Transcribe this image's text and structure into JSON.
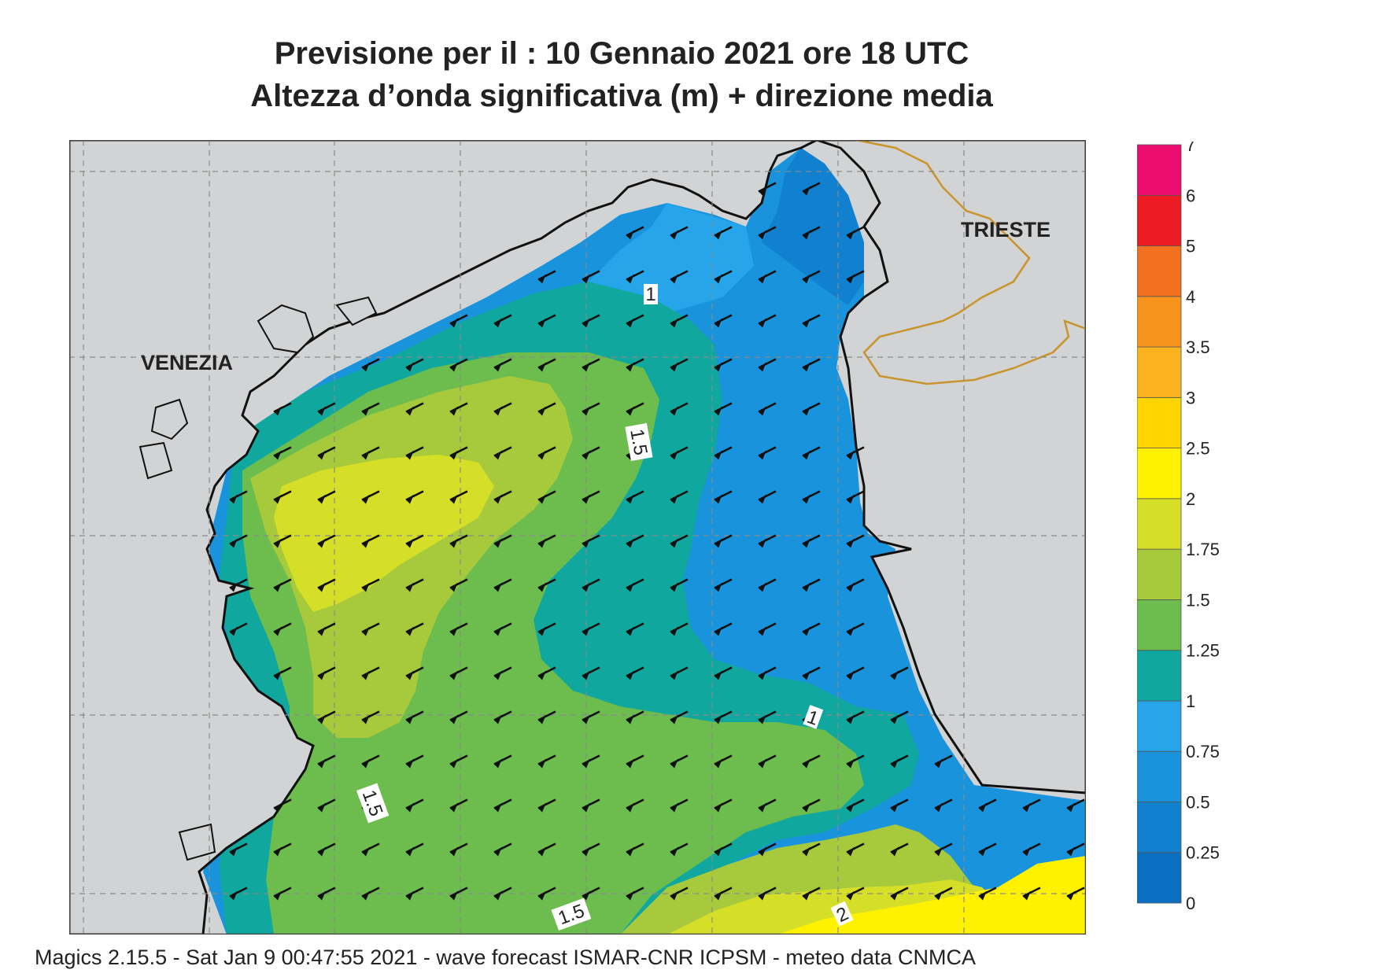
{
  "title_line1": "Previsione per il  :  10  Gennaio  2021   ore 18 UTC",
  "title_line2": "Altezza d’onda significativa (m) + direzione media",
  "footer": "Magics 2.15.5 - Sat Jan  9 00:47:55 2021 - wave forecast  ISMAR-CNR  ICPSM - meteo data   CNMCA",
  "city_labels": {
    "venezia": "VENEZIA",
    "trieste": "TRIESTE"
  },
  "contour_labels": {
    "c1_top": "1",
    "c15_mid": "1.5",
    "c1_right": "1",
    "c15_left": "1.5",
    "c15_bottom": "1.5",
    "c2_bottom": "2"
  },
  "legend": {
    "labels": [
      "0",
      "0.25",
      "0.5",
      "0.75",
      "1",
      "1.25",
      "1.5",
      "1.75",
      "2",
      "2.5",
      "3",
      "3.5",
      "4",
      "5",
      "6",
      "7"
    ],
    "colors": [
      "#0a6fc0",
      "#1181cf",
      "#1a93dd",
      "#27a5ea",
      "#10a79e",
      "#6cbc4e",
      "#a7ca3c",
      "#d6df27",
      "#fff200",
      "#ffd400",
      "#fbb21f",
      "#f7941d",
      "#f37021",
      "#ed1c24",
      "#ec0b6e"
    ]
  },
  "colors": {
    "land": "#d1d3d4",
    "border": "#c8942b",
    "arrow": "#111111"
  },
  "wave_direction": "south-west"
}
